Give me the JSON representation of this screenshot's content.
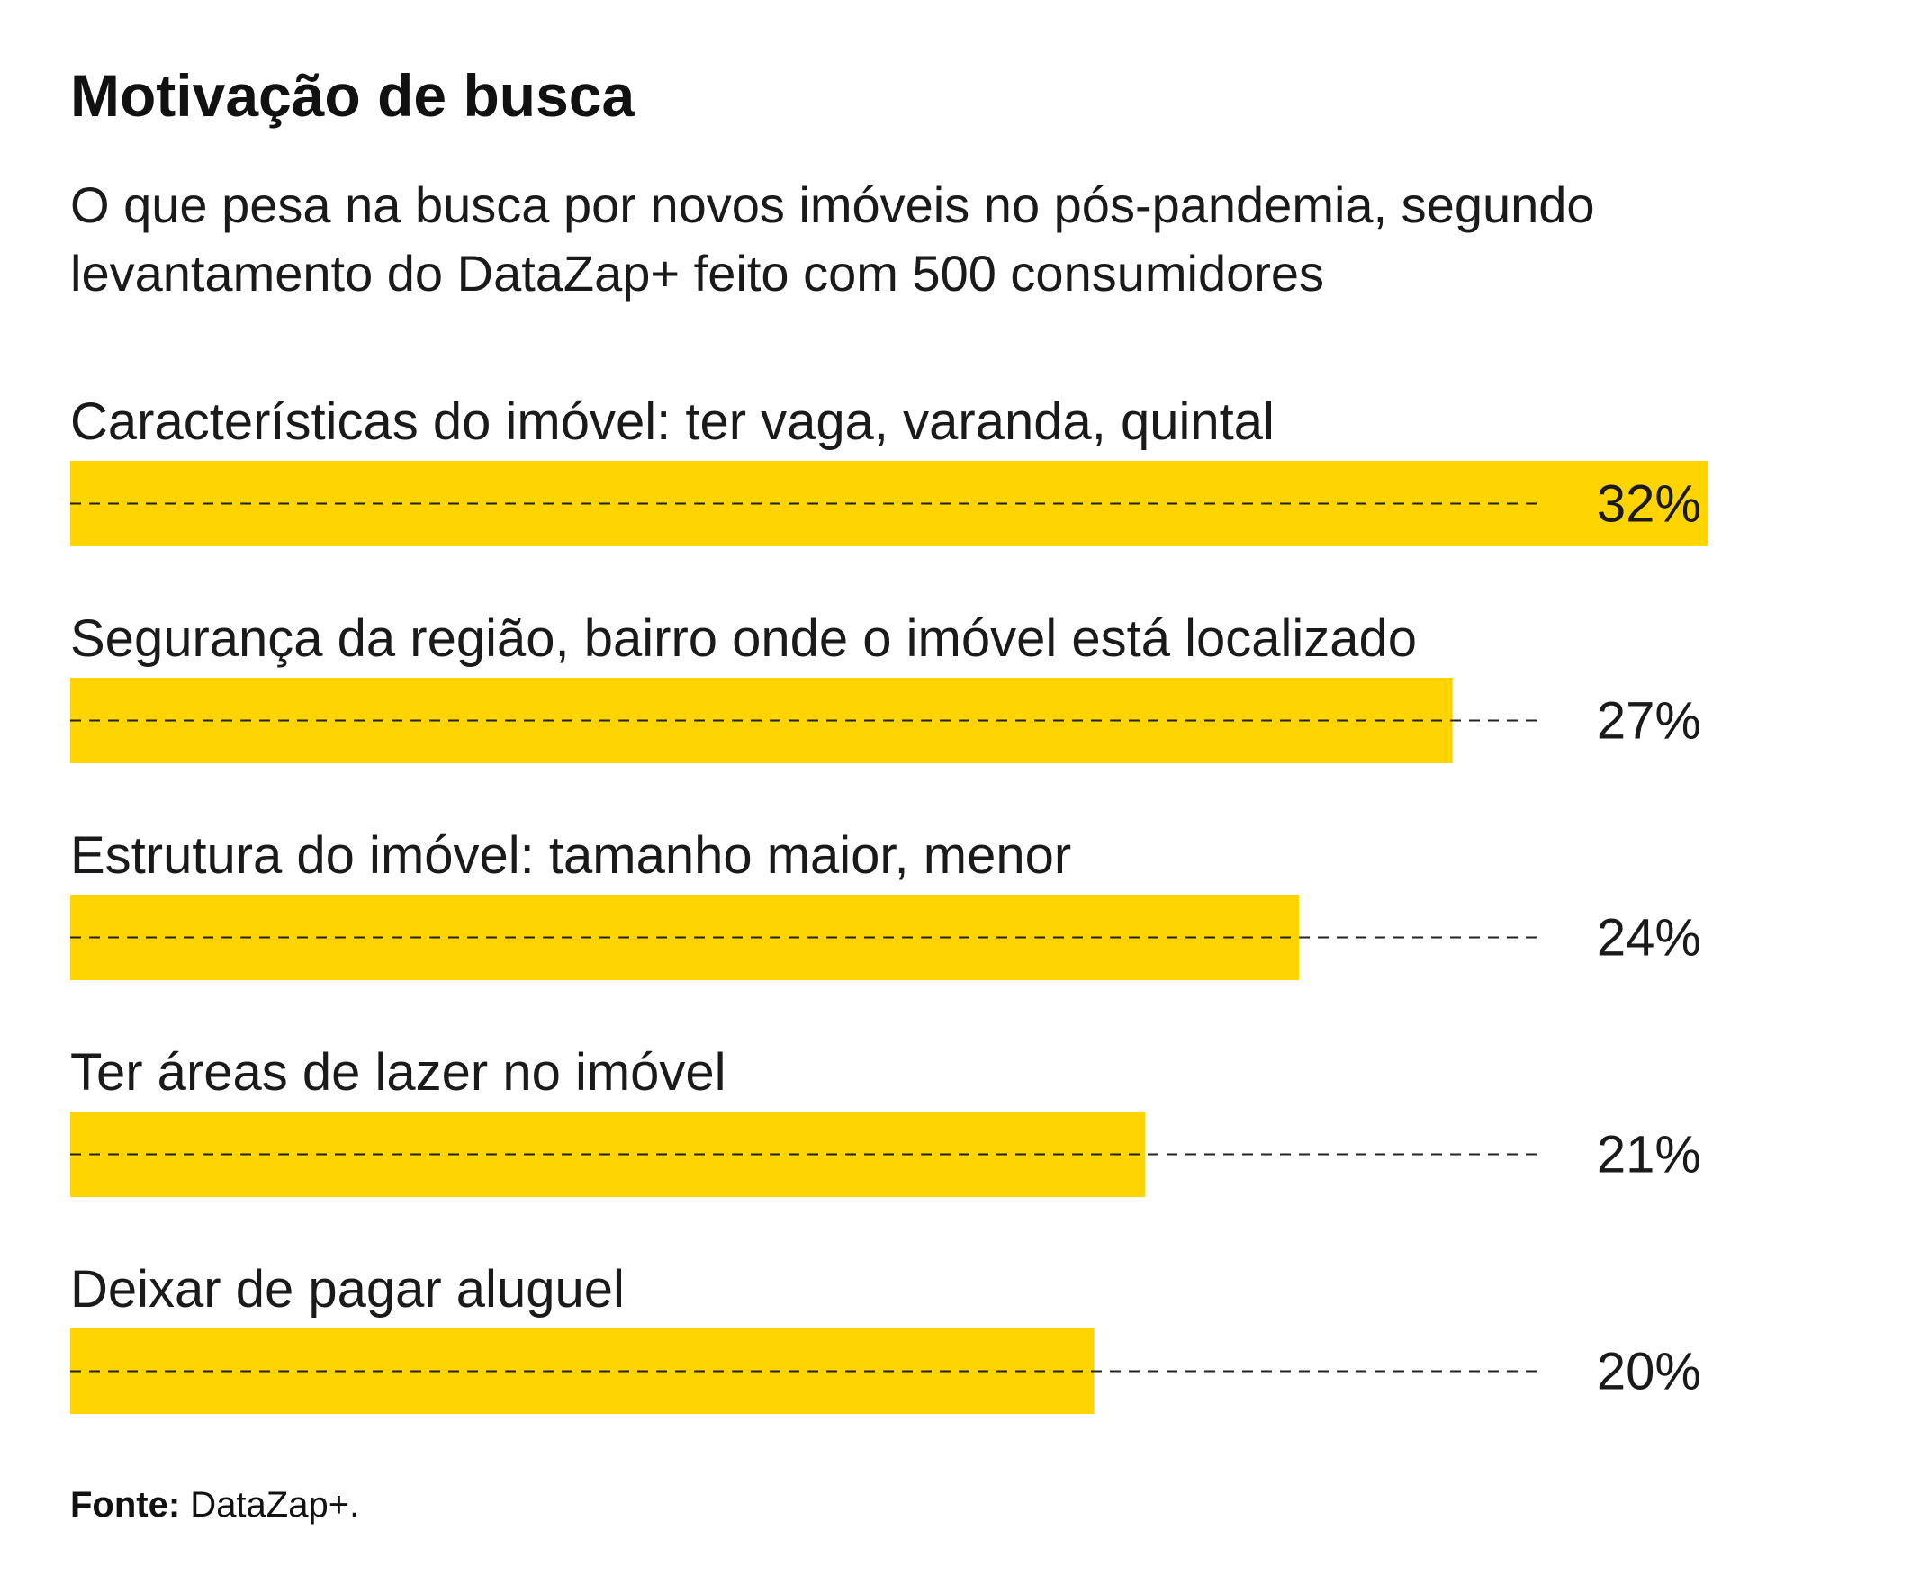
{
  "title": "Motivação de busca",
  "subtitle": "O que pesa na busca por novos imóveis no pós-pandemia, segundo levantamento do DataZap+ feito com 500 consumidores",
  "source": {
    "prefix": "Fonte:",
    "text": " DataZap+."
  },
  "colors": {
    "bar": "#FFD400",
    "text": "#1a1a1a",
    "guide": "#222222"
  },
  "chart_data": {
    "type": "bar",
    "orientation": "horizontal",
    "categories": [
      "Características do imóvel: ter vaga, varanda, quintal",
      "Segurança da região, bairro onde o imóvel está localizado",
      "Estrutura do imóvel: tamanho maior, menor",
      "Ter áreas de lazer no imóvel",
      "Deixar de pagar aluguel"
    ],
    "values": [
      32,
      27,
      24,
      21,
      20
    ],
    "value_labels": [
      "32%",
      "27%",
      "24%",
      "21%",
      "20%"
    ],
    "unit": "%",
    "xlim": [
      0,
      32
    ],
    "grid": false,
    "legend": "none"
  }
}
